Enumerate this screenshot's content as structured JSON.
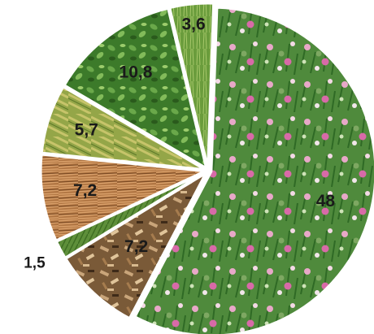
{
  "chart_data": {
    "type": "pie",
    "title": "",
    "slices": [
      {
        "label": "48",
        "value": 48,
        "color": "#4f8a3c",
        "texture": "clover"
      },
      {
        "label": "7,2",
        "value": 7.2,
        "color": "#8a6a45",
        "texture": "woodchips"
      },
      {
        "label": "1,5",
        "value": 1.5,
        "color": "#5e8f3a",
        "texture": "grass"
      },
      {
        "label": "7,2",
        "value": 7.2,
        "color": "#b47a45",
        "texture": "straw"
      },
      {
        "label": "5,7",
        "value": 5.7,
        "color": "#9fae4c",
        "texture": "wheat"
      },
      {
        "label": "10,8",
        "value": 10.8,
        "color": "#3f7f2c",
        "texture": "alfalfa"
      },
      {
        "label": "3,6",
        "value": 3.6,
        "color": "#6fa03e",
        "texture": "grass-strip"
      }
    ],
    "legend": false
  }
}
